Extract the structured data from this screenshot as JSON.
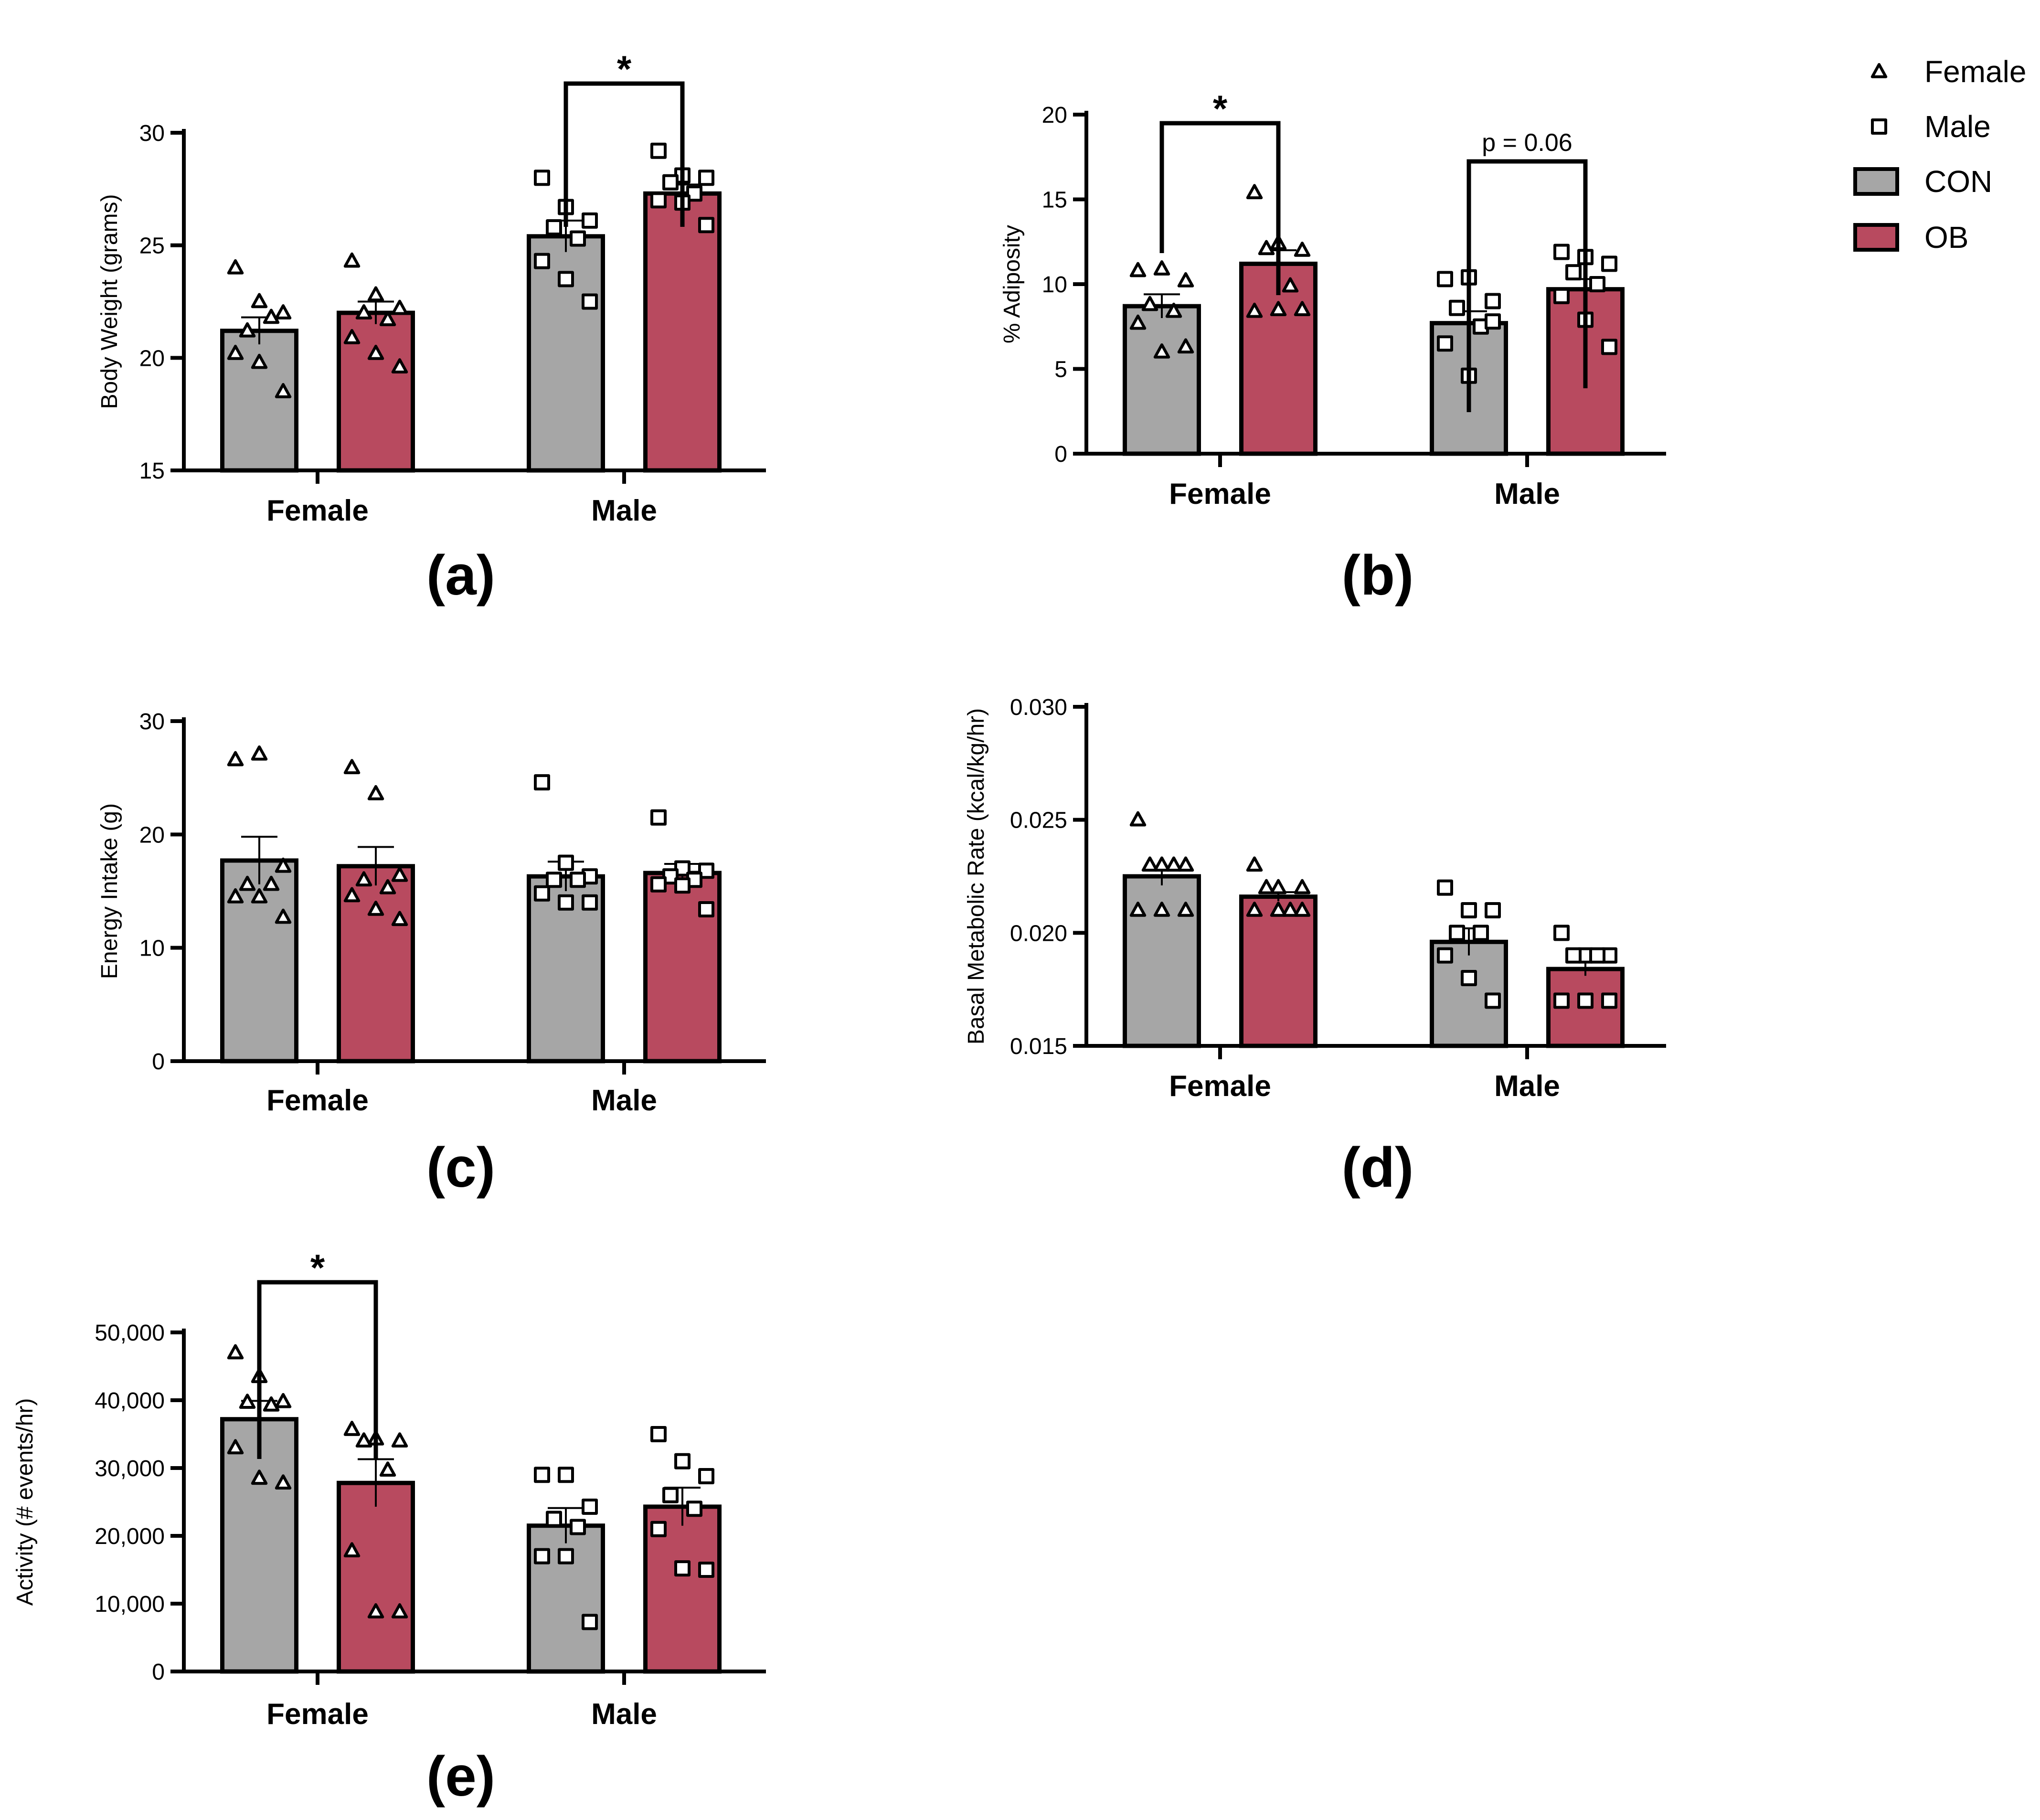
{
  "colors": {
    "CON": "#a6a6a6",
    "OB": "#b84a5f",
    "stroke": "#000000"
  },
  "legend": {
    "items": [
      {
        "label": "Female",
        "marker": "triangle"
      },
      {
        "label": "Male",
        "marker": "square"
      },
      {
        "label": "CON",
        "swatch": "CON"
      },
      {
        "label": "OB",
        "swatch": "OB"
      }
    ]
  },
  "chart_data": [
    {
      "id": "a",
      "panel_label": "(a)",
      "type": "bar",
      "categories": [
        "Female",
        "Male"
      ],
      "ylabel": "Body Weight (grams)",
      "ylim": [
        15,
        30
      ],
      "yticks": [
        15,
        20,
        25,
        30
      ],
      "tick_labels": [
        "15",
        "20",
        "25",
        "30"
      ],
      "series": [
        {
          "name": "CON",
          "values": [
            21.2,
            25.4
          ],
          "sem": [
            0.6,
            0.7
          ],
          "points": [
            [
              24.0,
              22.5,
              22.0,
              21.2,
              21.8,
              20.2,
              19.8,
              18.5
            ],
            [
              28.0,
              26.7,
              26.1,
              25.8,
              25.3,
              24.3,
              23.5,
              22.5
            ]
          ]
        },
        {
          "name": "OB",
          "values": [
            22.0,
            27.3
          ],
          "sem": [
            0.5,
            0.4
          ],
          "points": [
            [
              24.3,
              22.8,
              22.2,
              22.0,
              21.7,
              20.9,
              20.2,
              19.6
            ],
            [
              29.2,
              28.1,
              28.0,
              27.8,
              27.3,
              27.0,
              26.9,
              25.9
            ]
          ]
        }
      ],
      "annotations": [
        {
          "text": "*",
          "pair": [
            0,
            1
          ],
          "category": 1
        }
      ]
    },
    {
      "id": "b",
      "panel_label": "(b)",
      "type": "bar",
      "categories": [
        "Female",
        "Male"
      ],
      "ylabel": "% Adiposity",
      "ylim": [
        0,
        20
      ],
      "yticks": [
        0,
        5,
        10,
        15,
        20
      ],
      "tick_labels": [
        "0",
        "5",
        "10",
        "15",
        "20"
      ],
      "series": [
        {
          "name": "CON",
          "values": [
            8.7,
            7.7
          ],
          "sem": [
            0.7,
            0.7
          ],
          "points": [
            [
              10.8,
              10.9,
              10.2,
              8.8,
              8.4,
              7.7,
              6.0,
              6.3
            ],
            [
              10.3,
              10.4,
              9.0,
              8.6,
              7.5,
              6.5,
              4.6,
              7.8
            ]
          ]
        },
        {
          "name": "OB",
          "values": [
            11.2,
            9.7
          ],
          "sem": [
            0.8,
            0.6
          ],
          "points": [
            [
              15.4,
              12.4,
              12.0,
              12.1,
              9.9,
              8.4,
              8.5,
              8.5
            ],
            [
              11.9,
              11.6,
              11.2,
              10.7,
              10.0,
              9.3,
              7.9,
              6.3
            ]
          ]
        }
      ],
      "annotations": [
        {
          "text": "*",
          "pair": [
            0,
            1
          ],
          "category": 0
        },
        {
          "text": "p = 0.06",
          "pair": [
            0,
            1
          ],
          "category": 1
        }
      ]
    },
    {
      "id": "c",
      "panel_label": "(c)",
      "type": "bar",
      "categories": [
        "Female",
        "Male"
      ],
      "ylabel": "Energy Intake (g)",
      "ylim": [
        0,
        30
      ],
      "yticks": [
        0,
        10,
        20,
        30
      ],
      "tick_labels": [
        "0",
        "10",
        "20",
        "30"
      ],
      "series": [
        {
          "name": "CON",
          "values": [
            17.7,
            16.3
          ],
          "sem": [
            2.1,
            1.3
          ],
          "points": [
            [
              26.6,
              27.1,
              17.2,
              15.6,
              15.6,
              14.5,
              14.5,
              12.7
            ],
            [
              24.6,
              17.5,
              16.3,
              16.0,
              16.0,
              14.8,
              14.0,
              14.0
            ]
          ]
        },
        {
          "name": "OB",
          "values": [
            17.2,
            16.6
          ],
          "sem": [
            1.7,
            0.8
          ],
          "points": [
            [
              25.9,
              23.6,
              16.4,
              16.0,
              15.3,
              14.6,
              13.4,
              12.5
            ],
            [
              21.5,
              17.0,
              16.8,
              16.3,
              16.0,
              15.6,
              15.5,
              13.4
            ]
          ]
        }
      ],
      "annotations": []
    },
    {
      "id": "d",
      "panel_label": "(d)",
      "type": "bar",
      "categories": [
        "Female",
        "Male"
      ],
      "ylabel": "Basal Metabolic Rate (kcal/kg/hr)",
      "ylim": [
        0.015,
        0.03
      ],
      "yticks": [
        0.015,
        0.02,
        0.025,
        0.03
      ],
      "tick_labels": [
        "0.015",
        "0.020",
        "0.025",
        "0.030"
      ],
      "series": [
        {
          "name": "CON",
          "values": [
            0.0225,
            0.0196
          ],
          "sem": [
            0.0004,
            0.0006
          ],
          "points": [
            [
              0.025,
              0.023,
              0.023,
              0.023,
              0.023,
              0.021,
              0.021,
              0.021
            ],
            [
              0.022,
              0.021,
              0.021,
              0.02,
              0.02,
              0.019,
              0.018,
              0.017
            ]
          ]
        },
        {
          "name": "OB",
          "values": [
            0.0216,
            0.0184
          ],
          "sem": [
            0.0002,
            0.0003
          ],
          "points": [
            [
              0.023,
              0.022,
              0.022,
              0.022,
              0.021,
              0.021,
              0.021,
              0.021
            ],
            [
              0.02,
              0.019,
              0.019,
              0.019,
              0.019,
              0.017,
              0.017,
              0.017
            ]
          ]
        }
      ],
      "annotations": []
    },
    {
      "id": "e",
      "panel_label": "(e)",
      "type": "bar",
      "categories": [
        "Female",
        "Male"
      ],
      "ylabel": "Activity (# events/hr)",
      "ylim": [
        0,
        50000
      ],
      "yticks": [
        0,
        10000,
        20000,
        30000,
        40000,
        50000
      ],
      "tick_labels": [
        "0",
        "10,000",
        "20,000",
        "30,000",
        "40,000",
        "50,000"
      ],
      "series": [
        {
          "name": "CON",
          "values": [
            37200,
            21500
          ],
          "sem": [
            2700,
            2600
          ],
          "points": [
            [
              47000,
              43500,
              39800,
              39700,
              39300,
              33000,
              28500,
              27800
            ],
            [
              29000,
              29000,
              24300,
              22500,
              21300,
              17000,
              17000,
              7300
            ]
          ]
        },
        {
          "name": "OB",
          "values": [
            27800,
            24300
          ],
          "sem": [
            3500,
            2800
          ],
          "points": [
            [
              35700,
              34300,
              34000,
              34000,
              29700,
              17800,
              8800,
              8800
            ],
            [
              35000,
              31000,
              28800,
              26000,
              24000,
              21000,
              15200,
              15000
            ]
          ]
        }
      ],
      "annotations": [
        {
          "text": "*",
          "pair": [
            0,
            1
          ],
          "category": 0
        }
      ]
    }
  ]
}
